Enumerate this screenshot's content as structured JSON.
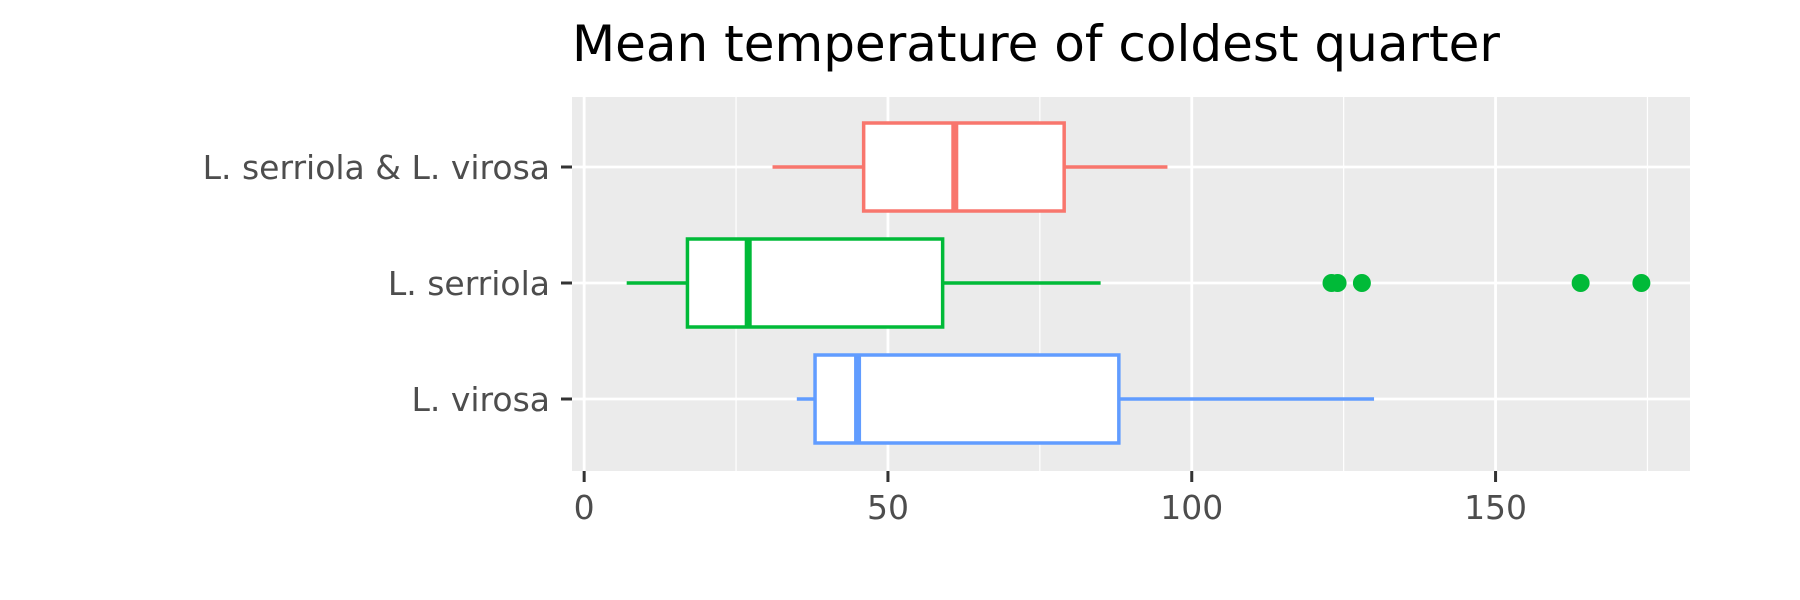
{
  "chart_data": {
    "type": "boxplot",
    "orientation": "horizontal",
    "title": "Mean temperature of coldest quarter",
    "xlabel": "",
    "ylabel": "",
    "xlim": [
      -2,
      182
    ],
    "x_ticks": [
      {
        "value": 0,
        "label": "0"
      },
      {
        "value": 50,
        "label": "50"
      },
      {
        "value": 100,
        "label": "100"
      },
      {
        "value": 150,
        "label": "150"
      }
    ],
    "grid": true,
    "legend": "none",
    "categories": [
      "L. serriola & L. virosa",
      "L. serriola",
      "L. virosa"
    ],
    "series": [
      {
        "category": "L. serriola & L. virosa",
        "color": "#F8766D",
        "whisker_low": 31,
        "q1": 46,
        "median": 61,
        "q3": 79,
        "whisker_high": 96,
        "outliers": []
      },
      {
        "category": "L. serriola",
        "color": "#00BA38",
        "whisker_low": 7,
        "q1": 17,
        "median": 27,
        "q3": 59,
        "whisker_high": 85,
        "outliers": [
          123,
          124,
          128,
          164,
          174
        ]
      },
      {
        "category": "L. virosa",
        "color": "#619CFF",
        "whisker_low": 35,
        "q1": 38,
        "median": 45,
        "q3": 88,
        "whisker_high": 130,
        "outliers": []
      }
    ],
    "colors": {
      "panel_background": "#EBEBEB",
      "grid_major": "#FFFFFF",
      "axis_ticks": "#333333",
      "tick_text": "#4D4D4D"
    }
  }
}
